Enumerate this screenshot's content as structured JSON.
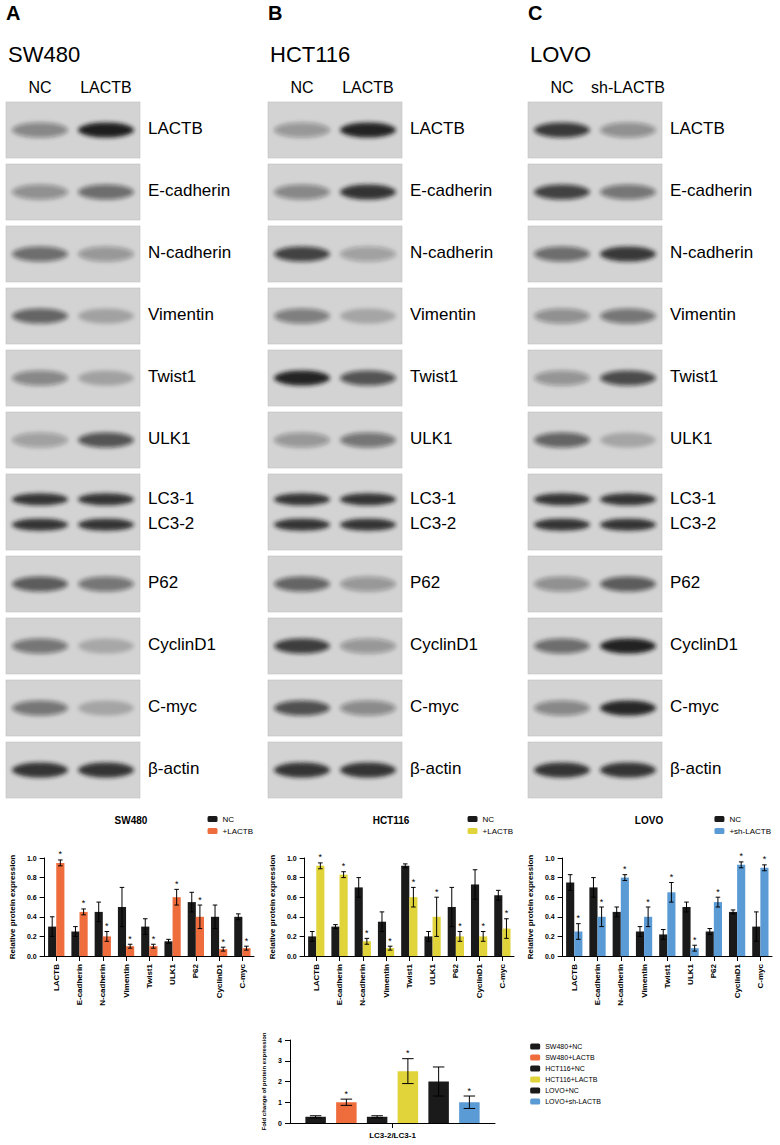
{
  "figure": {
    "panels": [
      {
        "letter": "A",
        "cell_line": "SW480",
        "lanes": [
          "NC",
          "LACTB"
        ],
        "blots": [
          [
            "LACTB"
          ],
          [
            "E-cadherin"
          ],
          [
            "N-cadherin"
          ],
          [
            "Vimentin"
          ],
          [
            "Twist1"
          ],
          [
            "ULK1"
          ],
          [
            "LC3-1",
            "LC3-2"
          ],
          [
            "P62"
          ],
          [
            "CyclinD1"
          ],
          [
            "C-myc"
          ],
          [
            "β-actin"
          ]
        ]
      },
      {
        "letter": "B",
        "cell_line": "HCT116",
        "lanes": [
          "NC",
          "LACTB"
        ],
        "blots": [
          [
            "LACTB"
          ],
          [
            "E-cadherin"
          ],
          [
            "N-cadherin"
          ],
          [
            "Vimentin"
          ],
          [
            "Twist1"
          ],
          [
            "ULK1"
          ],
          [
            "LC3-1",
            "LC3-2"
          ],
          [
            "P62"
          ],
          [
            "CyclinD1"
          ],
          [
            "C-myc"
          ],
          [
            "β-actin"
          ]
        ]
      },
      {
        "letter": "C",
        "cell_line": "LOVO",
        "lanes": [
          "NC",
          "sh-LACTB"
        ],
        "blots": [
          [
            "LACTB"
          ],
          [
            "E-cadherin"
          ],
          [
            "N-cadherin"
          ],
          [
            "Vimentin"
          ],
          [
            "Twist1"
          ],
          [
            "ULK1"
          ],
          [
            "LC3-1",
            "LC3-2"
          ],
          [
            "P62"
          ],
          [
            "CyclinD1"
          ],
          [
            "C-myc"
          ],
          [
            "β-actin"
          ]
        ]
      }
    ]
  },
  "chart_data": [
    {
      "type": "bar",
      "title": "SW480",
      "y_label": "Relative protein expression",
      "categories": [
        "LACTB",
        "E-cadherin",
        "N-cadherin",
        "Vimentin",
        "Twist1",
        "ULK1",
        "P62",
        "CyclinD1",
        "C-myc"
      ],
      "series": [
        {
          "name": "NC",
          "color": "#1a1a1a",
          "values": [
            0.3,
            0.25,
            0.45,
            0.5,
            0.3,
            0.15,
            0.55,
            0.4,
            0.4
          ],
          "errors": [
            0.1,
            0.05,
            0.1,
            0.2,
            0.08,
            0.02,
            0.1,
            0.12,
            0.03
          ]
        },
        {
          "name": "+LACTB",
          "color": "#ef6c3c",
          "values": [
            0.95,
            0.45,
            0.2,
            0.1,
            0.1,
            0.6,
            0.4,
            0.07,
            0.08
          ],
          "errors": [
            0.03,
            0.03,
            0.05,
            0.02,
            0.02,
            0.08,
            0.12,
            0.02,
            0.02
          ],
          "annotations": [
            "*",
            "*",
            "*",
            "*",
            "*",
            "*",
            "*",
            "*",
            "*"
          ]
        }
      ],
      "ylim": [
        0,
        1
      ],
      "yticks": [
        {
          "value": 0,
          "label": "0.0"
        },
        0.2,
        0.4,
        0.6,
        0.8,
        {
          "value": 1,
          "label": "1.0"
        }
      ],
      "grid": false,
      "legend": "upper right"
    },
    {
      "type": "bar",
      "title": "HCT116",
      "y_label": "Relative protein expression",
      "categories": [
        "LACTB",
        "E-cadherin",
        "N-cadherin",
        "Vimentin",
        "Twist1",
        "ULK1",
        "P62",
        "CyclinD1",
        "C-myc"
      ],
      "series": [
        {
          "name": "NC",
          "color": "#1a1a1a",
          "values": [
            0.2,
            0.3,
            0.7,
            0.35,
            0.92,
            0.2,
            0.5,
            0.73,
            0.62
          ],
          "errors": [
            0.05,
            0.02,
            0.1,
            0.1,
            0.02,
            0.05,
            0.2,
            0.15,
            0.05
          ]
        },
        {
          "name": "+LACTB",
          "color": "#e0d43a",
          "values": [
            0.92,
            0.83,
            0.15,
            0.08,
            0.6,
            0.4,
            0.2,
            0.2,
            0.28
          ],
          "errors": [
            0.03,
            0.03,
            0.03,
            0.02,
            0.1,
            0.2,
            0.05,
            0.05,
            0.1
          ],
          "annotations": [
            "*",
            "*",
            "*",
            "*",
            "*",
            "*",
            "*",
            "*",
            "*"
          ]
        }
      ],
      "ylim": [
        0,
        1
      ],
      "yticks": [
        {
          "value": 0,
          "label": "0.0"
        },
        0.2,
        0.4,
        0.6,
        0.8,
        {
          "value": 1,
          "label": "1.0"
        }
      ],
      "grid": false,
      "legend": "upper right"
    },
    {
      "type": "bar",
      "title": "LOVO",
      "y_label": "Relative protein expression",
      "categories": [
        "LACTB",
        "E-cadherin",
        "N-cadherin",
        "Vimentin",
        "Twist1",
        "ULK1",
        "P62",
        "CyclinD1",
        "C-myc"
      ],
      "series": [
        {
          "name": "NC",
          "color": "#1a1a1a",
          "values": [
            0.75,
            0.7,
            0.45,
            0.25,
            0.22,
            0.5,
            0.25,
            0.45,
            0.3
          ],
          "errors": [
            0.08,
            0.1,
            0.05,
            0.05,
            0.05,
            0.05,
            0.03,
            0.02,
            0.15
          ]
        },
        {
          "name": "+sh-LACTB",
          "color": "#5b9bd5",
          "values": [
            0.25,
            0.4,
            0.8,
            0.4,
            0.65,
            0.08,
            0.55,
            0.93,
            0.9
          ],
          "errors": [
            0.08,
            0.1,
            0.03,
            0.1,
            0.1,
            0.03,
            0.05,
            0.03,
            0.03
          ],
          "annotations": [
            "*",
            "*",
            "*",
            "*",
            "*",
            "*",
            "*",
            "*",
            "*"
          ]
        }
      ],
      "ylim": [
        0,
        1
      ],
      "yticks": [
        {
          "value": 0,
          "label": "0.0"
        },
        0.2,
        0.4,
        0.6,
        0.8,
        {
          "value": 1,
          "label": "1.0"
        }
      ],
      "grid": false,
      "legend": "upper right"
    },
    {
      "type": "bar",
      "y_label": "Fold change of protein expression",
      "categories": [
        "LC3-2/LC3-1"
      ],
      "series": [
        {
          "name": "SW480+NC",
          "color": "#1a1a1a",
          "values": [
            0.3
          ],
          "errors": [
            0.05
          ]
        },
        {
          "name": "SW480+LACTB",
          "color": "#ef6c3c",
          "values": [
            1.0
          ],
          "errors": [
            0.15
          ],
          "annotations": [
            "*"
          ]
        },
        {
          "name": "HCT116+NC",
          "color": "#1a1a1a",
          "values": [
            0.3
          ],
          "errors": [
            0.05
          ]
        },
        {
          "name": "HCT116+LACTB",
          "color": "#e0d43a",
          "values": [
            2.5
          ],
          "errors": [
            0.6
          ],
          "annotations": [
            "*"
          ]
        },
        {
          "name": "LOVO+NC",
          "color": "#1a1a1a",
          "values": [
            2.0
          ],
          "errors": [
            0.7
          ]
        },
        {
          "name": "LOVO+sh-LACTB",
          "color": "#5b9bd5",
          "values": [
            1.0
          ],
          "errors": [
            0.3
          ],
          "annotations": [
            "*"
          ]
        }
      ],
      "ylim": [
        0,
        4
      ],
      "yticks": [
        0,
        1,
        2,
        3,
        4
      ],
      "grid": false,
      "legend": "right"
    }
  ]
}
